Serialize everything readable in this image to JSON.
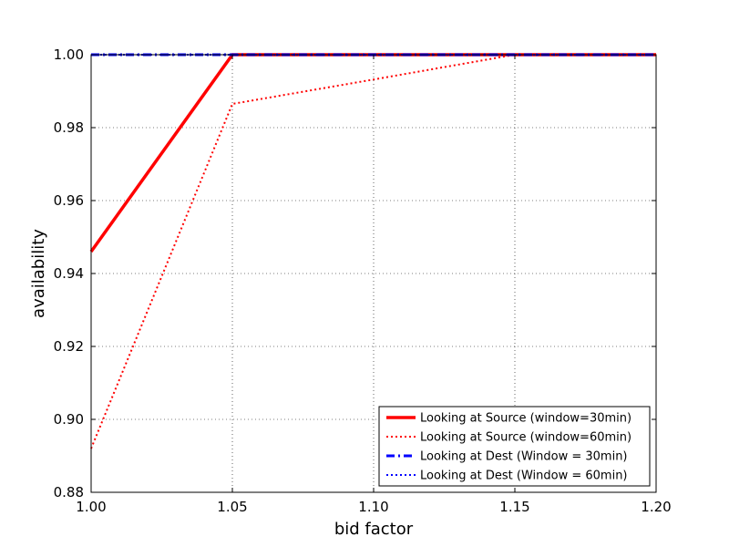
{
  "chart_data": {
    "type": "line",
    "title": "",
    "xlabel": "bid factor",
    "ylabel": "availability",
    "xlim": [
      1.0,
      1.2
    ],
    "ylim": [
      0.88,
      1.0
    ],
    "xticks": [
      "1.00",
      "1.05",
      "1.10",
      "1.15",
      "1.20"
    ],
    "yticks": [
      "0.88",
      "0.90",
      "0.92",
      "0.94",
      "0.96",
      "0.98",
      "1.00"
    ],
    "grid": true,
    "legend_position": "lower-right",
    "series": [
      {
        "name": "Looking at Source (window=30min)",
        "color": "#ff0000",
        "style": "solid",
        "x": [
          1.0,
          1.05,
          1.1,
          1.15,
          1.2
        ],
        "y": [
          0.946,
          1.0,
          1.0,
          1.0,
          1.0
        ]
      },
      {
        "name": "Looking at Source (window=60min)",
        "color": "#ff0000",
        "style": "dotted",
        "x": [
          1.0,
          1.05,
          1.1,
          1.15,
          1.2
        ],
        "y": [
          0.892,
          0.9865,
          0.9932,
          1.0,
          1.0
        ]
      },
      {
        "name": "Looking at Dest (Window = 30min)",
        "color": "#0000ff",
        "style": "dashdot",
        "x": [
          1.0,
          1.05,
          1.1,
          1.15,
          1.2
        ],
        "y": [
          1.0,
          1.0,
          1.0,
          1.0,
          1.0
        ]
      },
      {
        "name": "Looking at Dest (Window = 60min)",
        "color": "#0000ff",
        "style": "dotted",
        "x": [
          1.0,
          1.05,
          1.1,
          1.15,
          1.2
        ],
        "y": [
          1.0,
          1.0,
          1.0,
          1.0,
          1.0
        ]
      }
    ]
  }
}
